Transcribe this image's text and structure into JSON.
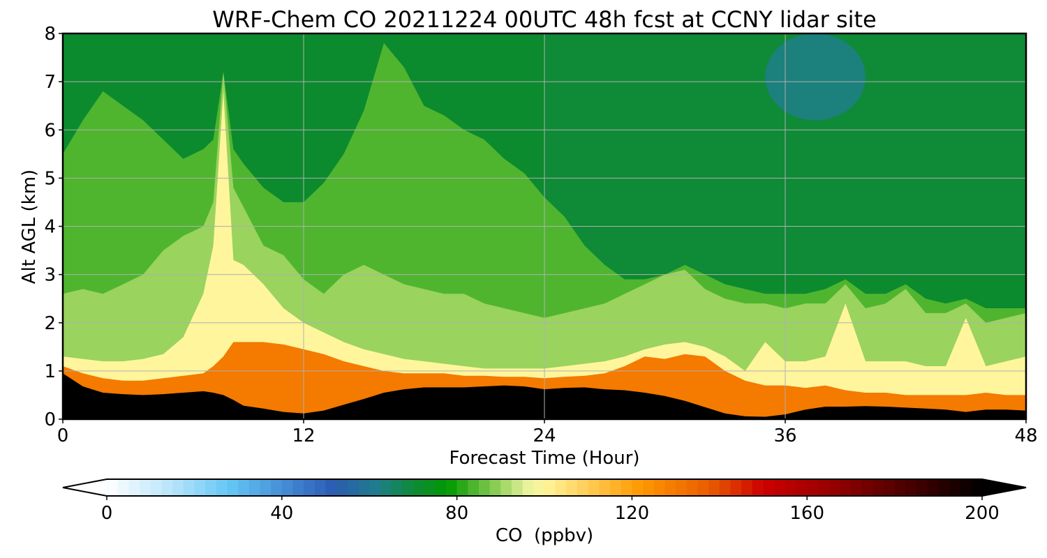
{
  "chart_data": {
    "type": "heatmap",
    "title": "WRF-Chem CO  20211224 00UTC 48h fcst at CCNY lidar site",
    "xlabel": "Forecast Time (Hour)",
    "ylabel": "Alt AGL (km)",
    "xlim": [
      0,
      48
    ],
    "ylim": [
      0,
      8
    ],
    "x_ticks": [
      0,
      12,
      24,
      36,
      48
    ],
    "x_tick_labels": [
      "0",
      "12",
      "24",
      "36",
      "48"
    ],
    "y_ticks": [
      0,
      1,
      2,
      3,
      4,
      5,
      6,
      7,
      8
    ],
    "y_tick_labels": [
      "0",
      "1",
      "2",
      "3",
      "4",
      "5",
      "6",
      "7",
      "8"
    ],
    "grid": true,
    "x_hours": [
      0,
      1,
      2,
      3,
      4,
      5,
      6,
      7,
      7.5,
      8,
      8.5,
      9,
      10,
      11,
      12,
      13,
      14,
      15,
      16,
      17,
      18,
      19,
      20,
      21,
      22,
      23,
      24,
      25,
      26,
      27,
      28,
      29,
      30,
      31,
      32,
      33,
      34,
      35,
      36,
      37,
      38,
      39,
      40,
      41,
      42,
      43,
      44,
      45,
      46,
      47,
      48
    ],
    "profile_note_altitudes_km": [
      0,
      0.25,
      0.5,
      0.75,
      1,
      1.25,
      1.5,
      2,
      2.5,
      3,
      3.5,
      4,
      5,
      6,
      7,
      8
    ],
    "features": {
      "black_layer_top_km": [
        0.95,
        0.68,
        0.55,
        0.52,
        0.5,
        0.52,
        0.55,
        0.58,
        0.55,
        0.5,
        0.4,
        0.28,
        0.22,
        0.15,
        0.12,
        0.18,
        0.3,
        0.42,
        0.55,
        0.62,
        0.66,
        0.66,
        0.66,
        0.68,
        0.7,
        0.68,
        0.62,
        0.65,
        0.66,
        0.62,
        0.6,
        0.55,
        0.48,
        0.38,
        0.25,
        0.12,
        0.06,
        0.05,
        0.1,
        0.2,
        0.26,
        0.26,
        0.27,
        0.26,
        0.24,
        0.22,
        0.2,
        0.15,
        0.2,
        0.2,
        0.18
      ],
      "orange_layer_top_km": [
        1.1,
        0.95,
        0.85,
        0.8,
        0.8,
        0.85,
        0.9,
        0.95,
        1.1,
        1.3,
        1.6,
        1.6,
        1.6,
        1.55,
        1.45,
        1.35,
        1.2,
        1.1,
        1.0,
        0.95,
        0.95,
        0.95,
        0.9,
        0.9,
        0.88,
        0.88,
        0.85,
        0.88,
        0.9,
        0.95,
        1.1,
        1.3,
        1.25,
        1.35,
        1.3,
        1.0,
        0.8,
        0.7,
        0.7,
        0.65,
        0.7,
        0.6,
        0.55,
        0.55,
        0.5,
        0.5,
        0.5,
        0.5,
        0.55,
        0.5,
        0.5
      ],
      "yellow_layer_top_km": [
        1.3,
        1.25,
        1.2,
        1.2,
        1.25,
        1.35,
        1.7,
        2.6,
        3.6,
        6.8,
        3.3,
        3.2,
        2.8,
        2.3,
        2.0,
        1.8,
        1.6,
        1.45,
        1.35,
        1.25,
        1.2,
        1.15,
        1.1,
        1.05,
        1.05,
        1.05,
        1.05,
        1.1,
        1.15,
        1.2,
        1.3,
        1.45,
        1.55,
        1.6,
        1.5,
        1.3,
        1.0,
        1.6,
        1.2,
        1.2,
        1.3,
        2.4,
        1.2,
        1.2,
        1.2,
        1.1,
        1.1,
        2.1,
        1.1,
        1.2,
        1.3
      ],
      "light_green_top_km": [
        2.6,
        2.7,
        2.6,
        2.8,
        3.0,
        3.5,
        3.8,
        4.0,
        4.5,
        7.2,
        4.8,
        4.4,
        3.6,
        3.4,
        2.9,
        2.6,
        3.0,
        3.2,
        3.0,
        2.8,
        2.7,
        2.6,
        2.6,
        2.4,
        2.3,
        2.2,
        2.1,
        2.2,
        2.3,
        2.4,
        2.6,
        2.8,
        3.0,
        3.1,
        2.7,
        2.5,
        2.4,
        2.4,
        2.3,
        2.4,
        2.4,
        2.8,
        2.3,
        2.4,
        2.7,
        2.2,
        2.2,
        2.4,
        2.0,
        2.1,
        2.2
      ],
      "mid_green_top_km": [
        5.5,
        6.2,
        6.8,
        6.5,
        6.2,
        5.8,
        5.4,
        5.6,
        5.8,
        7.2,
        5.6,
        5.3,
        4.8,
        4.5,
        4.5,
        4.9,
        5.5,
        6.4,
        7.8,
        7.3,
        6.5,
        6.3,
        6.0,
        5.8,
        5.4,
        5.1,
        4.6,
        4.2,
        3.6,
        3.2,
        2.9,
        2.9,
        3.0,
        3.2,
        3.0,
        2.8,
        2.7,
        2.6,
        2.6,
        2.6,
        2.7,
        2.9,
        2.6,
        2.6,
        2.8,
        2.5,
        2.4,
        2.5,
        2.3,
        2.3,
        2.3
      ],
      "blue_core": {
        "x_range_hours": [
          35,
          40
        ],
        "alt_range_km": [
          6.2,
          8
        ],
        "min_ppbv": 62
      },
      "dark_green_region": {
        "x_range_hours": [
          24,
          48
        ],
        "alt_range_km": [
          3,
          8
        ],
        "approx_ppbv": 70
      }
    },
    "ppbv_by_layer": {
      "black_layer": 200,
      "orange_layer": 130,
      "yellow_layer": 100,
      "light_green_layer": 90,
      "mid_green_layer": 84,
      "upper_green": 78
    },
    "colorbar": {
      "label": "CO  (ppbv)",
      "min": 0,
      "max": 200,
      "step": 2.5,
      "extend": "both",
      "ticks": [
        0,
        40,
        80,
        120,
        160,
        200
      ],
      "tick_labels": [
        "0",
        "40",
        "80",
        "120",
        "160",
        "200"
      ],
      "color_stops": [
        {
          "v": 0,
          "c": "#ffffff"
        },
        {
          "v": 15,
          "c": "#b8e4fb"
        },
        {
          "v": 28,
          "c": "#63c7f5"
        },
        {
          "v": 45,
          "c": "#3a78c9"
        },
        {
          "v": 52,
          "c": "#2a5cb0"
        },
        {
          "v": 62,
          "c": "#1e7e8a"
        },
        {
          "v": 70,
          "c": "#0f8a38"
        },
        {
          "v": 78,
          "c": "#009900"
        },
        {
          "v": 84,
          "c": "#4fb52f"
        },
        {
          "v": 90,
          "c": "#9ad35e"
        },
        {
          "v": 96,
          "c": "#e6f39c"
        },
        {
          "v": 100,
          "c": "#fff59c"
        },
        {
          "v": 110,
          "c": "#ffcc55"
        },
        {
          "v": 122,
          "c": "#ff9900"
        },
        {
          "v": 138,
          "c": "#e85a00"
        },
        {
          "v": 150,
          "c": "#cc0000"
        },
        {
          "v": 165,
          "c": "#9a0000"
        },
        {
          "v": 185,
          "c": "#400000"
        },
        {
          "v": 200,
          "c": "#000000"
        }
      ]
    }
  }
}
